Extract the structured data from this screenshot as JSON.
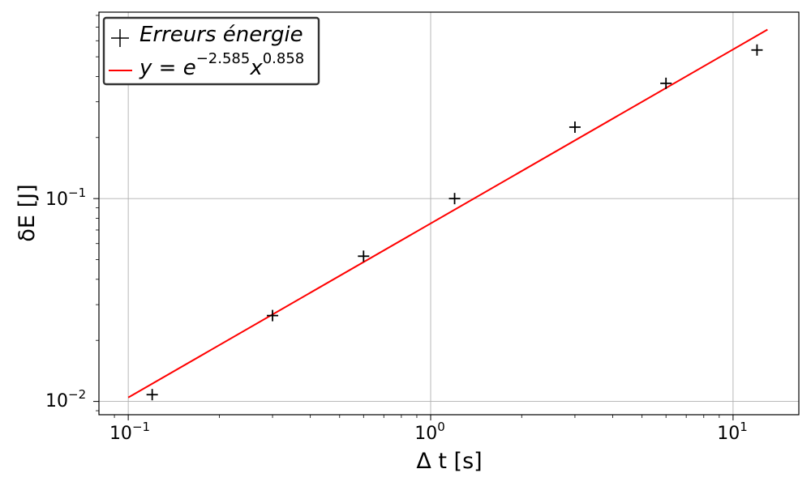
{
  "chart_data": {
    "type": "scatter",
    "xscale": "log",
    "yscale": "log",
    "xlim": [
      0.08,
      16.5
    ],
    "ylim": [
      0.0086,
      0.83
    ],
    "grid": true,
    "xlabel": "Δ t [s]",
    "ylabel": "δE [J]",
    "xticks": [
      {
        "value": 0.1,
        "base": "10",
        "exp": "−1"
      },
      {
        "value": 1,
        "base": "10",
        "exp": "0"
      },
      {
        "value": 10,
        "base": "10",
        "exp": "1"
      }
    ],
    "yticks": [
      {
        "value": 0.01,
        "base": "10",
        "exp": "−2"
      },
      {
        "value": 0.1,
        "base": "10",
        "exp": "−1"
      }
    ],
    "series": [
      {
        "name": "Erreurs énergie",
        "kind": "scatter",
        "marker": "plus",
        "color": "#000000",
        "x": [
          0.12,
          0.3,
          0.6,
          1.2,
          3.0,
          6.0,
          12.0
        ],
        "y": [
          0.0108,
          0.0265,
          0.052,
          0.1,
          0.225,
          0.37,
          0.54
        ]
      },
      {
        "name": "y = e^(−2.585) x^(0.858)",
        "kind": "line",
        "color": "#ff0000",
        "coef_exp": -2.585,
        "power": 0.858,
        "x": [
          0.1,
          13.0
        ]
      }
    ],
    "legend": {
      "placement": "top-left",
      "entries": [
        {
          "text": "Erreurs énergie"
        },
        {
          "prefix": "y = e",
          "sup1": "−2.585",
          "mid": "x",
          "sup2": "0.858"
        }
      ]
    }
  }
}
